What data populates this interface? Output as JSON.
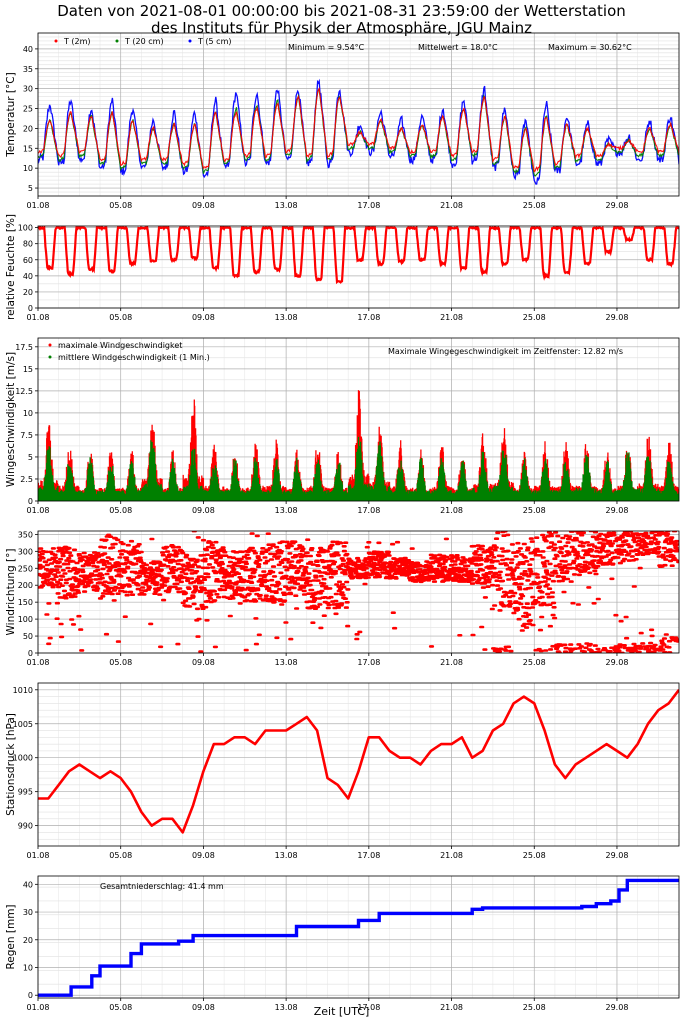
{
  "title_line1": "Daten von 2021-08-01 00:00:00 bis 2021-08-31 23:59:00 der Wetterstation",
  "title_line2": "des Instituts für Physik der Atmosphäre, JGU Mainz",
  "xlabel": "Zeit [UTC]",
  "colors": {
    "red": "#ff0000",
    "green": "#008000",
    "blue": "#0000ff",
    "grid": "#b0b0b0"
  },
  "chart_data": [
    {
      "id": "temp",
      "type": "scatter",
      "ylabel": "Temperatur [°C]",
      "x_ticks": [
        "01.08",
        "05.08",
        "09.08",
        "13.08",
        "17.08",
        "21.08",
        "25.08",
        "29.08"
      ],
      "xlim": [
        1,
        32
      ],
      "ylim": [
        3,
        44
      ],
      "y_ticks": [
        5,
        10,
        15,
        20,
        25,
        30,
        35,
        40
      ],
      "y_minor_step": 1,
      "grid": true,
      "legend_position": "top-left",
      "annotations": [
        "Minimum = 9.54°C",
        "Mittelwert = 18.0°C",
        "Maximum = 30.62°C"
      ],
      "series": [
        {
          "name": "T (2m)",
          "color": "#ff0000",
          "daily_min": [
            14,
            13,
            14,
            12,
            11,
            12,
            12,
            11,
            10,
            12,
            13,
            13,
            14,
            13,
            13,
            16,
            16,
            15,
            14,
            14,
            13,
            14,
            12,
            10,
            9.5,
            11,
            13,
            13,
            15,
            14,
            14
          ],
          "daily_max": [
            22,
            24,
            23,
            24,
            22,
            20,
            21,
            21,
            24,
            24,
            25,
            26,
            28,
            30,
            28,
            19,
            22,
            20,
            21,
            23,
            25,
            28,
            23,
            20,
            23,
            21,
            20,
            16,
            17,
            20,
            21
          ]
        },
        {
          "name": "T (20 cm)",
          "color": "#008000",
          "daily_min": [
            13,
            12,
            13,
            11,
            10,
            11,
            11,
            10,
            9,
            11,
            12,
            12,
            13,
            12,
            12,
            15,
            15,
            14,
            13,
            13,
            12,
            13,
            11,
            9,
            8,
            10,
            12,
            12,
            14,
            13,
            13
          ],
          "daily_max": [
            22,
            24,
            23,
            24,
            22,
            20,
            21,
            21,
            24,
            25,
            26,
            27,
            28,
            30,
            28,
            19,
            22,
            20,
            21,
            23,
            25,
            28,
            23,
            20,
            23,
            21,
            20,
            16,
            17,
            20,
            21
          ]
        },
        {
          "name": "T (5 cm)",
          "color": "#0000ff",
          "daily_min": [
            12,
            11,
            12,
            10,
            9,
            10,
            10,
            9,
            8,
            10,
            11,
            11,
            12,
            11,
            11,
            14,
            14,
            13,
            12,
            12,
            11,
            12,
            10,
            8,
            6,
            9,
            11,
            11,
            14,
            12,
            12
          ],
          "daily_max": [
            26,
            27,
            25,
            27,
            25,
            22,
            24,
            24,
            27,
            29,
            29,
            30,
            30,
            32,
            30,
            21,
            24,
            22,
            23,
            25,
            27,
            30,
            25,
            22,
            26,
            23,
            21,
            17,
            18,
            22,
            23
          ]
        }
      ]
    },
    {
      "id": "hum",
      "type": "scatter",
      "ylabel": "relative Feuchte [%]",
      "x_ticks": [
        "01.08",
        "05.08",
        "09.08",
        "13.08",
        "17.08",
        "21.08",
        "25.08",
        "29.08"
      ],
      "xlim": [
        1,
        32
      ],
      "ylim": [
        0,
        102
      ],
      "y_ticks": [
        0,
        20,
        40,
        60,
        80,
        100
      ],
      "y_minor_step": 10,
      "grid": true,
      "series": [
        {
          "name": "relative Feuchte",
          "color": "#ff0000",
          "daily_min": [
            50,
            42,
            48,
            45,
            55,
            58,
            60,
            62,
            50,
            40,
            45,
            48,
            40,
            35,
            33,
            60,
            55,
            58,
            60,
            55,
            50,
            45,
            55,
            60,
            40,
            45,
            55,
            70,
            85,
            60,
            55
          ],
          "daily_max": [
            100,
            100,
            100,
            100,
            100,
            100,
            100,
            100,
            100,
            100,
            100,
            100,
            100,
            100,
            100,
            100,
            100,
            100,
            100,
            100,
            100,
            100,
            100,
            100,
            100,
            100,
            100,
            100,
            100,
            100,
            100
          ]
        }
      ]
    },
    {
      "id": "wind",
      "type": "scatter",
      "ylabel": "Wingeschwindigkeit [m/s]",
      "x_ticks": [
        "01.08",
        "05.08",
        "09.08",
        "13.08",
        "17.08",
        "21.08",
        "25.08",
        "29.08"
      ],
      "xlim": [
        1,
        32
      ],
      "ylim": [
        0,
        18.5
      ],
      "y_ticks": [
        0,
        2.5,
        5,
        7.5,
        10,
        12.5,
        15,
        17.5
      ],
      "y_minor_step": 1.25,
      "grid": true,
      "legend_position": "top-left",
      "annotations": [
        "Maximale Wingegeschwindigkeit im Zeitfenster: 12.82 m/s"
      ],
      "series": [
        {
          "name": "maximale Windgeschwindigket",
          "color": "#ff0000",
          "daily_peak": [
            9.5,
            7,
            6,
            6,
            6,
            10.5,
            6,
            12,
            7,
            6,
            7,
            7,
            6,
            7,
            6,
            12.8,
            9,
            7,
            6,
            7,
            6,
            8,
            9,
            6,
            7,
            7,
            7,
            6,
            7,
            8,
            7
          ]
        },
        {
          "name": "mittlere Windgeschwindigkeit (1 Min.)",
          "color": "#008000",
          "daily_peak": [
            7,
            5,
            5,
            5,
            5,
            8,
            5,
            7,
            5,
            5,
            5,
            5,
            5,
            5,
            5,
            8,
            7,
            5,
            5,
            5,
            5,
            6,
            7,
            5,
            5,
            5,
            6,
            5,
            6,
            6,
            5
          ]
        }
      ]
    },
    {
      "id": "dir",
      "type": "scatter",
      "ylabel": "Windrichtung [°]",
      "x_ticks": [
        "01.08",
        "05.08",
        "09.08",
        "13.08",
        "17.08",
        "21.08",
        "25.08",
        "29.08"
      ],
      "xlim": [
        1,
        32
      ],
      "ylim": [
        0,
        360
      ],
      "y_ticks": [
        0,
        50,
        100,
        150,
        200,
        250,
        300,
        350
      ],
      "y_minor_step": 25,
      "grid": true,
      "series": [
        {
          "name": "Windrichtung",
          "color": "#ff0000",
          "daily_center": [
            250,
            240,
            240,
            260,
            250,
            220,
            250,
            210,
            240,
            230,
            230,
            240,
            250,
            220,
            230,
            250,
            260,
            250,
            240,
            250,
            250,
            260,
            260,
            200,
            260,
            300,
            310,
            320,
            330,
            340,
            330
          ],
          "daily_spread": [
            60,
            80,
            60,
            90,
            80,
            50,
            70,
            80,
            90,
            70,
            80,
            90,
            80,
            90,
            100,
            30,
            40,
            30,
            30,
            40,
            40,
            60,
            120,
            130,
            120,
            90,
            80,
            60,
            60,
            50,
            80
          ]
        }
      ]
    },
    {
      "id": "press",
      "type": "line",
      "ylabel": "Stationsdruck [hPa]",
      "x_ticks": [
        "01.08",
        "05.08",
        "09.08",
        "13.08",
        "17.08",
        "21.08",
        "25.08",
        "29.08"
      ],
      "xlim": [
        1,
        32
      ],
      "ylim": [
        987,
        1011
      ],
      "y_ticks": [
        990,
        995,
        1000,
        1005,
        1010
      ],
      "y_minor_step": 1,
      "grid": true,
      "series": [
        {
          "name": "Stationsdruck",
          "color": "#ff0000",
          "x": [
            1,
            1.5,
            2,
            2.5,
            3,
            3.5,
            4,
            4.5,
            5,
            5.5,
            6,
            6.5,
            7,
            7.5,
            8,
            8.5,
            9,
            9.5,
            10,
            10.5,
            11,
            11.5,
            12,
            12.5,
            13,
            13.5,
            14,
            14.5,
            15,
            15.5,
            16,
            16.5,
            17,
            17.5,
            18,
            18.5,
            19,
            19.5,
            20,
            20.5,
            21,
            21.5,
            22,
            22.5,
            23,
            23.5,
            24,
            24.5,
            25,
            25.5,
            26,
            26.5,
            27,
            27.5,
            28,
            28.5,
            29,
            29.5,
            30,
            30.5,
            31,
            31.5,
            32
          ],
          "y": [
            994,
            994,
            996,
            998,
            999,
            998,
            997,
            998,
            997,
            995,
            992,
            990,
            991,
            991,
            989,
            993,
            998,
            1002,
            1002,
            1003,
            1003,
            1002,
            1004,
            1004,
            1004,
            1005,
            1006,
            1004,
            997,
            996,
            994,
            998,
            1003,
            1003,
            1001,
            1000,
            1000,
            999,
            1001,
            1002,
            1002,
            1003,
            1000,
            1001,
            1004,
            1005,
            1008,
            1009,
            1008,
            1004,
            999,
            997,
            999,
            1000,
            1001,
            1002,
            1001,
            1000,
            1002,
            1005,
            1007,
            1008,
            1010
          ]
        }
      ]
    },
    {
      "id": "rain",
      "type": "line",
      "ylabel": "Regen [mm]",
      "x_ticks": [
        "01.08",
        "05.08",
        "09.08",
        "13.08",
        "17.08",
        "21.08",
        "25.08",
        "29.08"
      ],
      "xlim": [
        1,
        32
      ],
      "ylim": [
        -1,
        43
      ],
      "y_ticks": [
        0,
        10,
        20,
        30,
        40
      ],
      "y_minor_step": 5,
      "grid": true,
      "annotations": [
        "Gesamtniederschlag: 41.4 mm"
      ],
      "series": [
        {
          "name": "Regen",
          "color": "#0000ff",
          "step_x": [
            1,
            2.6,
            3.6,
            4,
            5.5,
            6,
            7.8,
            8.5,
            13.5,
            16.5,
            17.5,
            22,
            22.5,
            27.3,
            28,
            28.7,
            29.1,
            29.5,
            32
          ],
          "step_y": [
            0,
            3,
            7,
            10.5,
            15,
            18.5,
            19.5,
            21.5,
            24.8,
            27,
            29.5,
            31,
            31.5,
            32,
            33,
            34,
            38,
            41.4,
            41.4
          ]
        }
      ]
    }
  ]
}
